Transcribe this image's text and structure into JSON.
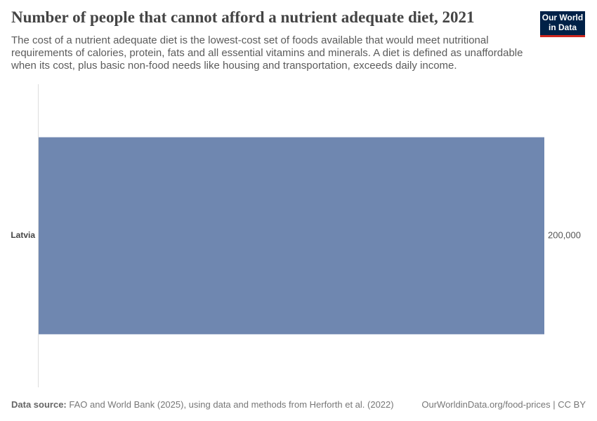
{
  "chart_data": {
    "type": "bar",
    "orientation": "horizontal",
    "title": "Number of people that cannot afford a nutrient adequate diet, 2021",
    "subtitle": "The cost of a nutrient adequate diet is the lowest-cost set of foods available that would meet nutritional requirements of calories, protein, fats and all essential vitamins and minerals. A diet is defined as unaffordable when its cost, plus basic non-food needs like housing and transportation, exceeds daily income.",
    "categories": [
      "Latvia"
    ],
    "values": [
      200000
    ],
    "value_labels": [
      "200,000"
    ],
    "color": "#6f87b0",
    "logo": "Our World in Data",
    "source_label": "Data source:",
    "source": "FAO and World Bank (2025), using data and methods from Herforth et al. (2022)",
    "credit": "OurWorldinData.org/food-prices | CC BY"
  }
}
